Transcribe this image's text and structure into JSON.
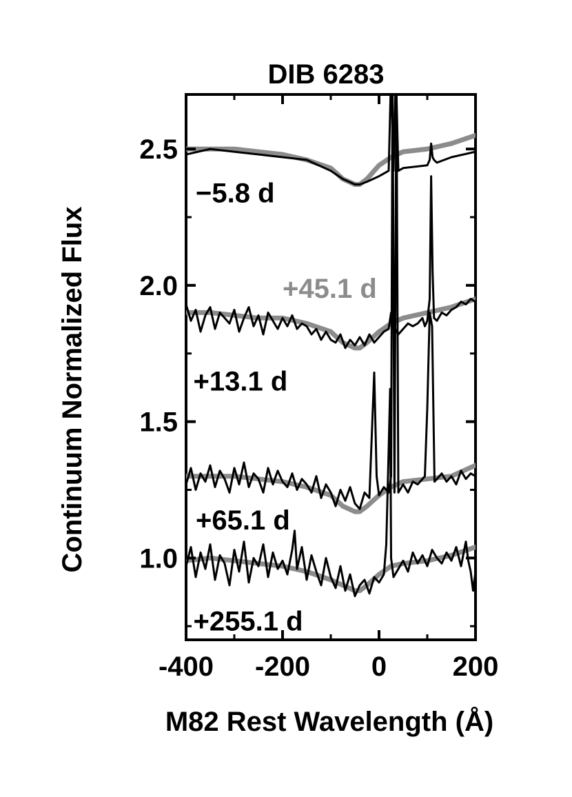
{
  "chart_data": {
    "type": "line",
    "title": "DIB 6283",
    "xlabel": "M82 Rest Wavelength (Å)",
    "ylabel": "Continuum Normalized Flux",
    "xlim": [
      -400,
      200
    ],
    "ylim": [
      0.7,
      2.7
    ],
    "x_ticks": [
      -400,
      -200,
      0,
      200
    ],
    "y_ticks": [
      1.0,
      1.5,
      2.0,
      2.5
    ],
    "x_tick_labels": [
      "-400",
      "-200",
      "0",
      "200"
    ],
    "y_tick_labels": [
      "1.0",
      "1.5",
      "2.0",
      "2.5"
    ],
    "grid": false,
    "colors": {
      "observed": "#000000",
      "template": "#8c8c8c"
    },
    "epoch_labels": [
      {
        "text": "−5.8 d",
        "x": -380,
        "y": 2.34,
        "color": "#000000"
      },
      {
        "text": "+45.1 d",
        "x": -200,
        "y": 1.99,
        "color": "#8c8c8c"
      },
      {
        "text": "+13.1 d",
        "x": -385,
        "y": 1.65,
        "color": "#000000"
      },
      {
        "text": "+65.1 d",
        "x": -380,
        "y": 1.14,
        "color": "#000000"
      },
      {
        "text": "+255.1 d",
        "x": -385,
        "y": 0.77,
        "color": "#000000"
      }
    ],
    "series": [
      {
        "role": "template",
        "color": "#8c8c8c",
        "x": [
          -400,
          -350,
          -300,
          -250,
          -200,
          -150,
          -100,
          -75,
          -50,
          -40,
          -25,
          0,
          25,
          50,
          100,
          150,
          200
        ],
        "y": [
          2.5,
          2.5,
          2.5,
          2.49,
          2.48,
          2.46,
          2.43,
          2.39,
          2.37,
          2.37,
          2.39,
          2.44,
          2.47,
          2.49,
          2.5,
          2.52,
          2.55
        ]
      },
      {
        "role": "observed",
        "color": "#000000",
        "x": [
          -400,
          -350,
          -300,
          -250,
          -200,
          -150,
          -100,
          -75,
          -50,
          -40,
          -25,
          0,
          20,
          25,
          30,
          35,
          40,
          50,
          100,
          105,
          108,
          111,
          114,
          120,
          150,
          200
        ],
        "y": [
          2.48,
          2.5,
          2.49,
          2.48,
          2.47,
          2.46,
          2.42,
          2.39,
          2.37,
          2.37,
          2.38,
          2.4,
          2.42,
          2.78,
          2.42,
          2.78,
          2.42,
          2.43,
          2.44,
          2.46,
          2.52,
          2.47,
          2.46,
          2.45,
          2.47,
          2.49
        ]
      },
      {
        "role": "template",
        "color": "#8c8c8c",
        "x": [
          -400,
          -350,
          -300,
          -250,
          -200,
          -150,
          -100,
          -75,
          -50,
          -40,
          -25,
          0,
          25,
          50,
          100,
          150,
          200
        ],
        "y": [
          1.9,
          1.9,
          1.89,
          1.88,
          1.88,
          1.86,
          1.83,
          1.79,
          1.77,
          1.77,
          1.79,
          1.83,
          1.86,
          1.88,
          1.9,
          1.92,
          1.95
        ]
      },
      {
        "role": "observed",
        "color": "#000000",
        "x": [
          -400,
          -390,
          -380,
          -370,
          -360,
          -350,
          -340,
          -330,
          -320,
          -310,
          -300,
          -290,
          -280,
          -270,
          -260,
          -250,
          -240,
          -230,
          -220,
          -210,
          -200,
          -190,
          -180,
          -170,
          -160,
          -150,
          -140,
          -130,
          -120,
          -110,
          -100,
          -90,
          -80,
          -70,
          -60,
          -50,
          -40,
          -30,
          -20,
          -10,
          0,
          10,
          20,
          25,
          30,
          40,
          50,
          60,
          70,
          80,
          90,
          95,
          100,
          105,
          108,
          111,
          114,
          120,
          130,
          140,
          150,
          160,
          170,
          180,
          190,
          200
        ],
        "y": [
          1.93,
          1.87,
          1.91,
          1.83,
          1.89,
          1.92,
          1.84,
          1.9,
          1.88,
          1.86,
          1.91,
          1.83,
          1.88,
          1.92,
          1.85,
          1.89,
          1.82,
          1.9,
          1.87,
          1.84,
          1.88,
          1.85,
          1.89,
          1.84,
          1.86,
          1.85,
          1.82,
          1.84,
          1.8,
          1.83,
          1.8,
          1.79,
          1.82,
          1.77,
          1.8,
          1.78,
          1.81,
          1.78,
          1.82,
          1.79,
          1.81,
          1.83,
          1.84,
          1.9,
          1.85,
          1.82,
          1.84,
          1.86,
          1.85,
          1.86,
          1.88,
          1.85,
          1.87,
          1.95,
          2.4,
          2.05,
          1.88,
          1.87,
          1.9,
          1.89,
          1.91,
          1.92,
          1.94,
          1.93,
          1.95,
          1.94
        ]
      },
      {
        "role": "template",
        "color": "#8c8c8c",
        "x": [
          -400,
          -350,
          -300,
          -250,
          -200,
          -150,
          -100,
          -75,
          -50,
          -40,
          -25,
          0,
          25,
          50,
          100,
          150,
          200
        ],
        "y": [
          1.3,
          1.3,
          1.3,
          1.29,
          1.28,
          1.26,
          1.23,
          1.19,
          1.17,
          1.17,
          1.19,
          1.23,
          1.26,
          1.28,
          1.29,
          1.3,
          1.34
        ]
      },
      {
        "role": "observed",
        "color": "#000000",
        "x": [
          -400,
          -390,
          -380,
          -370,
          -360,
          -350,
          -340,
          -330,
          -320,
          -310,
          -300,
          -290,
          -280,
          -270,
          -260,
          -250,
          -240,
          -230,
          -220,
          -210,
          -200,
          -190,
          -180,
          -170,
          -160,
          -150,
          -140,
          -130,
          -120,
          -110,
          -100,
          -90,
          -80,
          -70,
          -60,
          -50,
          -40,
          -30,
          -20,
          -15,
          -10,
          -5,
          0,
          10,
          20,
          25,
          28,
          32,
          36,
          40,
          50,
          60,
          70,
          80,
          90,
          95,
          100,
          105,
          110,
          115,
          120,
          130,
          140,
          150,
          160,
          170,
          180,
          190,
          200
        ],
        "y": [
          1.27,
          1.33,
          1.25,
          1.31,
          1.28,
          1.34,
          1.26,
          1.32,
          1.29,
          1.24,
          1.33,
          1.27,
          1.35,
          1.26,
          1.31,
          1.29,
          1.24,
          1.33,
          1.27,
          1.32,
          1.28,
          1.26,
          1.31,
          1.25,
          1.29,
          1.27,
          1.24,
          1.3,
          1.22,
          1.27,
          1.24,
          1.19,
          1.25,
          1.21,
          1.26,
          1.2,
          1.18,
          1.24,
          1.22,
          1.45,
          1.68,
          1.3,
          1.23,
          1.26,
          1.24,
          1.3,
          2.78,
          1.24,
          2.78,
          1.24,
          1.27,
          1.24,
          1.28,
          1.27,
          1.29,
          1.3,
          1.55,
          1.9,
          1.85,
          1.28,
          1.29,
          1.31,
          1.28,
          1.3,
          1.27,
          1.32,
          1.29,
          1.31,
          1.3
        ]
      },
      {
        "role": "template",
        "color": "#8c8c8c",
        "x": [
          -400,
          -350,
          -300,
          -250,
          -200,
          -150,
          -100,
          -75,
          -50,
          -40,
          -25,
          0,
          25,
          50,
          100,
          150,
          200
        ],
        "y": [
          0.99,
          1.0,
          0.99,
          0.98,
          0.97,
          0.95,
          0.92,
          0.9,
          0.88,
          0.88,
          0.9,
          0.94,
          0.97,
          0.98,
          0.99,
          1.01,
          1.04
        ]
      },
      {
        "role": "observed",
        "color": "#000000",
        "x": [
          -400,
          -390,
          -380,
          -370,
          -360,
          -350,
          -340,
          -330,
          -320,
          -310,
          -300,
          -290,
          -280,
          -270,
          -260,
          -250,
          -240,
          -230,
          -220,
          -210,
          -200,
          -190,
          -180,
          -175,
          -170,
          -160,
          -150,
          -140,
          -130,
          -120,
          -110,
          -100,
          -90,
          -80,
          -70,
          -60,
          -50,
          -40,
          -30,
          -20,
          -10,
          0,
          10,
          15,
          20,
          23,
          25,
          30,
          40,
          50,
          60,
          70,
          80,
          90,
          100,
          110,
          120,
          130,
          140,
          150,
          160,
          170,
          180,
          185,
          190,
          195,
          200
        ],
        "y": [
          0.97,
          1.04,
          0.93,
          1.02,
          0.96,
          1.05,
          0.92,
          1.01,
          0.98,
          0.9,
          1.03,
          0.95,
          1.06,
          0.91,
          1.0,
          0.97,
          1.05,
          0.93,
          1.02,
          0.96,
          0.99,
          0.94,
          1.03,
          1.1,
          0.96,
          1.04,
          0.92,
          1.01,
          0.95,
          0.9,
          1.0,
          0.93,
          0.89,
          0.97,
          0.88,
          0.94,
          0.86,
          0.9,
          0.92,
          0.87,
          0.93,
          0.91,
          0.94,
          1.05,
          1.4,
          1.62,
          1.0,
          0.93,
          0.96,
          0.99,
          0.95,
          1.02,
          0.98,
          1.01,
          0.97,
          1.03,
          1.0,
          0.98,
          1.02,
          0.99,
          1.04,
          0.97,
          1.06,
          0.99,
          0.95,
          0.88,
          0.95
        ]
      }
    ]
  }
}
